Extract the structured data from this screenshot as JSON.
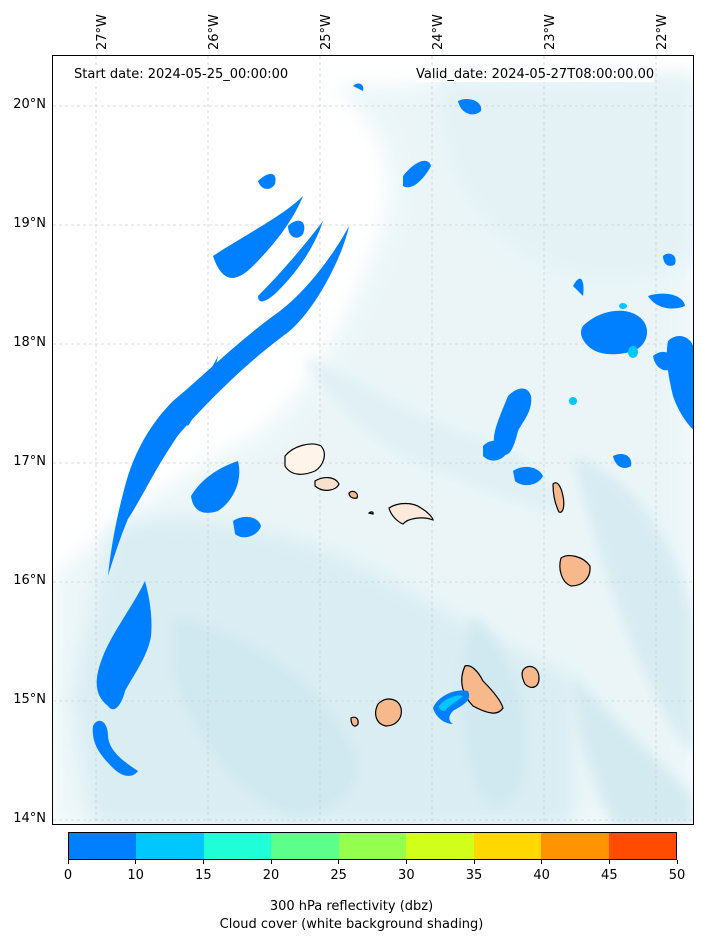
{
  "header": {
    "start_date": "Start date: 2024-05-25_00:00:00",
    "valid_date": "Valid_date: 2024-05-27T08:00:00.00"
  },
  "longitude_labels": [
    "27°W",
    "26°W",
    "25°W",
    "24°W",
    "23°W",
    "22°W"
  ],
  "latitude_labels": [
    "20°N",
    "19°N",
    "18°N",
    "17°N",
    "16°N",
    "15°N",
    "14°N"
  ],
  "colorbar": {
    "ticks": [
      "0",
      "10",
      "15",
      "20",
      "25",
      "30",
      "35",
      "40",
      "45",
      "50"
    ],
    "colors": [
      "#0080ff",
      "#00c8ff",
      "#1effd8",
      "#5cff8c",
      "#94ff4c",
      "#d2ff1a",
      "#ffd800",
      "#ff9400",
      "#ff4c00"
    ],
    "label_line1": "300 hPa reflectivity (dbz)",
    "label_line2": "Cloud cover (white background shading)"
  },
  "legend_colors": {
    "reflectivity_low": "#0080ff",
    "reflectivity_mid": "#00c8ff",
    "land": "#f7b88c",
    "cloud_shading": "#cfe9f1"
  }
}
